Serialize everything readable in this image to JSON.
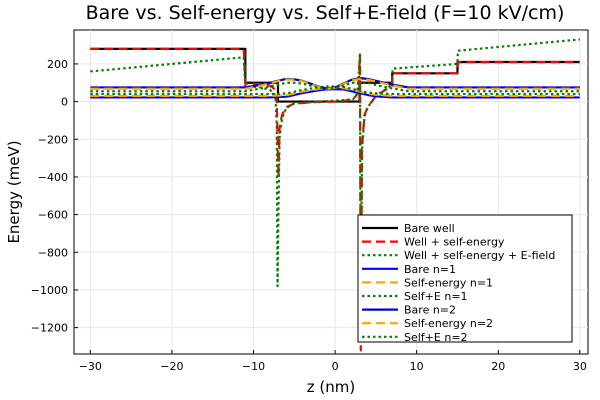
{
  "chart_data": {
    "type": "line",
    "title": "Bare vs. Self-energy vs. Self+E-field (F=10 kV/cm)",
    "xlabel": "z (nm)",
    "ylabel": "Energy (meV)",
    "xlim": [
      -32,
      31
    ],
    "ylim": [
      -1340,
      380
    ],
    "xticks": [
      -30,
      -20,
      -10,
      0,
      10,
      20,
      30
    ],
    "yticks": [
      -1200,
      -1000,
      -800,
      -600,
      -400,
      -200,
      0,
      200
    ],
    "grid": true,
    "legend_position": "bottom-right",
    "series": [
      {
        "name": "Bare well",
        "color": "#000000",
        "dash": "solid",
        "width": 2.2,
        "x": [
          -30,
          -11,
          -11,
          -7,
          -7,
          3,
          3,
          7,
          7,
          15,
          15,
          30
        ],
        "y": [
          280,
          280,
          100,
          100,
          0,
          0,
          100,
          100,
          150,
          150,
          210,
          210
        ]
      },
      {
        "name": "Well + self-energy",
        "color": "#ff0000",
        "dash": "long",
        "width": 2.2,
        "x": [
          -30,
          -11.2,
          -11,
          -10.5,
          -9,
          -8,
          -7.5,
          -7.3,
          -7.15,
          -7.05,
          -6.95,
          -6.8,
          -6.5,
          -6,
          -5,
          -2,
          0,
          2.2,
          2.7,
          2.9,
          3.05,
          3.15,
          3.3,
          3.6,
          4,
          5,
          7,
          7.05,
          15,
          15.05,
          30
        ],
        "y": [
          280,
          280,
          95,
          95,
          92,
          85,
          70,
          40,
          10,
          -200,
          -400,
          -140,
          -70,
          -30,
          -10,
          -2,
          0,
          10,
          40,
          120,
          250,
          -1320,
          -240,
          -70,
          -30,
          30,
          85,
          150,
          150,
          210,
          210
        ]
      },
      {
        "name": "Well + self-energy + E-field",
        "color": "#008000",
        "dash": "dot",
        "width": 2.2,
        "x": [
          -30,
          -11.2,
          -11,
          -10.5,
          -9,
          -8,
          -7.5,
          -7.3,
          -7.15,
          -7.05,
          -6.95,
          -6.8,
          -6.5,
          -6,
          -5,
          -2,
          0,
          2.2,
          2.7,
          2.9,
          3.05,
          3.15,
          3.3,
          3.6,
          4,
          5,
          7,
          7.05,
          15,
          15.05,
          30
        ],
        "y": [
          160,
          235,
          75,
          80,
          75,
          62,
          45,
          10,
          -120,
          -980,
          -600,
          -190,
          -90,
          -35,
          -10,
          0,
          5,
          12,
          40,
          150,
          255,
          -1200,
          -260,
          -80,
          -30,
          30,
          90,
          175,
          200,
          270,
          330
        ]
      },
      {
        "name": "Bare n=1",
        "color": "#0000ff",
        "dash": "solid",
        "width": 2.2,
        "x": [
          -30,
          -8,
          -6,
          -5,
          -4,
          -2,
          -1,
          0,
          1,
          2,
          3,
          4,
          5,
          7,
          30
        ],
        "y": [
          22,
          22,
          26,
          35,
          45,
          60,
          65,
          66,
          65,
          55,
          45,
          35,
          28,
          22,
          22
        ]
      },
      {
        "name": "Self-energy n=1",
        "color": "#ffa500",
        "dash": "long",
        "width": 2.2,
        "x": [
          -30,
          -8,
          -6,
          -5,
          -4,
          -2,
          -1,
          0,
          1,
          2,
          3,
          4,
          5,
          7,
          30
        ],
        "y": [
          30,
          30,
          34,
          43,
          53,
          67,
          72,
          73,
          72,
          63,
          53,
          43,
          36,
          30,
          30
        ]
      },
      {
        "name": "Self+E n=1",
        "color": "#008000",
        "dash": "dot",
        "width": 2.2,
        "x": [
          -30,
          -8,
          -6,
          -5,
          -4,
          -2,
          -1,
          0,
          1,
          2,
          3,
          4,
          5,
          7,
          30
        ],
        "y": [
          40,
          40,
          43,
          52,
          62,
          76,
          80,
          80,
          78,
          68,
          58,
          48,
          44,
          40,
          40
        ]
      },
      {
        "name": "Bare n=2",
        "color": "#0000cd",
        "dash": "solid",
        "width": 2.2,
        "x": [
          -30,
          -11,
          -9,
          -7,
          -6,
          -5,
          -4,
          -3,
          -2,
          -1,
          0,
          1,
          2,
          3,
          4,
          5,
          7,
          9,
          30
        ],
        "y": [
          75,
          75,
          90,
          110,
          120,
          118,
          110,
          95,
          80,
          70,
          75,
          95,
          115,
          125,
          120,
          110,
          90,
          75,
          75
        ]
      },
      {
        "name": "Self-energy n=2",
        "color": "#ffa500",
        "dash": "long",
        "width": 2.2,
        "x": [
          -30,
          -11,
          -9,
          -7,
          -6,
          -5,
          -4,
          -3,
          -2,
          -1,
          0,
          1,
          2,
          3,
          4,
          5,
          7,
          9,
          30
        ],
        "y": [
          68,
          68,
          86,
          108,
          118,
          116,
          108,
          93,
          78,
          68,
          72,
          92,
          112,
          120,
          116,
          106,
          86,
          68,
          68
        ]
      },
      {
        "name": "Self+E n=2",
        "color": "#008000",
        "dash": "dot",
        "width": 2.2,
        "x": [
          -30,
          -11,
          -9,
          -7,
          -6,
          -5,
          -4,
          -3,
          -2,
          -1,
          0,
          1,
          2,
          3,
          4,
          5,
          7,
          9,
          30
        ],
        "y": [
          55,
          55,
          70,
          90,
          100,
          100,
          95,
          85,
          75,
          68,
          72,
          85,
          98,
          105,
          100,
          88,
          70,
          55,
          55
        ]
      }
    ]
  }
}
